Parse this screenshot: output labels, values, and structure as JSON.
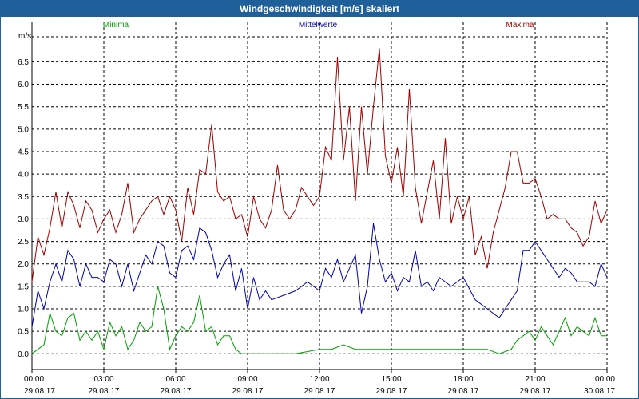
{
  "window": {
    "title": "Windgeschwindigkeit [m/s] skaliert"
  },
  "chart_data": {
    "type": "line",
    "title": "Windgeschwindigkeit [m/s] skaliert",
    "ylabel": "m/s",
    "xlabel": "",
    "ylim": [
      -0.35,
      7.2
    ],
    "xlim": [
      0,
      24
    ],
    "grid": true,
    "legend": "top",
    "yticks": [
      "0.0",
      "0.5",
      "1.0",
      "1.5",
      "2.0",
      "2.5",
      "3.0",
      "3.5",
      "4.0",
      "4.5",
      "5.0",
      "5.5",
      "6.0",
      "6.5"
    ],
    "xticks": [
      {
        "time": "00:00",
        "date": "29.08.17"
      },
      {
        "time": "03:00",
        "date": "29.08.17"
      },
      {
        "time": "06:00",
        "date": "29.08.17"
      },
      {
        "time": "09:00",
        "date": "29.08.17"
      },
      {
        "time": "12:00",
        "date": "29.08.17"
      },
      {
        "time": "15:00",
        "date": "29.08.17"
      },
      {
        "time": "18:00",
        "date": "29.08.17"
      },
      {
        "time": "21:00",
        "date": "29.08.17"
      },
      {
        "time": "00:00",
        "date": "30.08.17"
      }
    ],
    "x_unit": "hours since 29.08.17 00:00",
    "series": [
      {
        "name": "Minima",
        "color": "#00a000",
        "x": [
          0.0,
          0.25,
          0.5,
          0.75,
          1.0,
          1.25,
          1.5,
          1.75,
          2.0,
          2.25,
          2.5,
          2.75,
          3.0,
          3.25,
          3.5,
          3.75,
          4.0,
          4.25,
          4.5,
          4.75,
          5.0,
          5.25,
          5.5,
          5.75,
          6.0,
          6.25,
          6.5,
          6.75,
          7.0,
          7.25,
          7.5,
          7.75,
          8.0,
          8.25,
          8.5,
          8.75,
          9.0,
          9.5,
          10.0,
          11.0,
          12.0,
          12.5,
          13.0,
          13.5,
          14.0,
          14.5,
          15.0,
          15.5,
          16.0,
          16.5,
          17.0,
          18.0,
          19.0,
          19.5,
          20.0,
          20.25,
          20.5,
          20.75,
          21.0,
          21.25,
          21.5,
          21.75,
          22.0,
          22.25,
          22.5,
          22.75,
          23.0,
          23.25,
          23.5,
          23.75,
          24.0
        ],
        "values": [
          0.0,
          0.1,
          0.2,
          0.9,
          0.5,
          0.4,
          0.8,
          0.9,
          0.3,
          0.5,
          0.3,
          0.5,
          0.1,
          0.7,
          0.4,
          0.6,
          0.1,
          0.3,
          0.7,
          0.5,
          0.6,
          1.5,
          1.0,
          0.1,
          0.4,
          0.6,
          0.5,
          0.7,
          1.3,
          0.5,
          0.6,
          0.2,
          0.4,
          0.4,
          0.1,
          0.0,
          0.0,
          0.0,
          0.0,
          0.0,
          0.1,
          0.1,
          0.2,
          0.1,
          0.1,
          0.1,
          0.1,
          0.1,
          0.1,
          0.1,
          0.1,
          0.1,
          0.1,
          0.0,
          0.1,
          0.3,
          0.4,
          0.5,
          0.3,
          0.6,
          0.4,
          0.2,
          0.5,
          0.8,
          0.4,
          0.6,
          0.5,
          0.4,
          0.8,
          0.4,
          0.4
        ]
      },
      {
        "name": "Mittelwerte",
        "color": "#0000b0",
        "x": [
          0.0,
          0.25,
          0.5,
          0.75,
          1.0,
          1.25,
          1.5,
          1.75,
          2.0,
          2.25,
          2.5,
          2.75,
          3.0,
          3.25,
          3.5,
          3.75,
          4.0,
          4.25,
          4.5,
          4.75,
          5.0,
          5.25,
          5.5,
          5.75,
          6.0,
          6.25,
          6.5,
          6.75,
          7.0,
          7.25,
          7.5,
          7.75,
          8.0,
          8.25,
          8.5,
          8.75,
          9.0,
          9.25,
          9.5,
          9.75,
          10.0,
          10.5,
          11.0,
          11.5,
          12.0,
          12.25,
          12.5,
          12.75,
          13.0,
          13.25,
          13.5,
          13.75,
          14.0,
          14.25,
          14.5,
          14.75,
          15.0,
          15.25,
          15.5,
          15.75,
          16.0,
          16.25,
          16.5,
          16.75,
          17.0,
          17.5,
          18.0,
          18.5,
          19.0,
          19.5,
          20.0,
          20.25,
          20.5,
          20.75,
          21.0,
          21.25,
          21.5,
          21.75,
          22.0,
          22.25,
          22.5,
          22.75,
          23.0,
          23.25,
          23.5,
          23.75,
          24.0
        ],
        "values": [
          0.6,
          1.4,
          1.0,
          1.6,
          2.0,
          1.6,
          2.3,
          2.1,
          1.5,
          2.0,
          1.7,
          1.7,
          1.6,
          2.1,
          2.0,
          1.5,
          2.0,
          1.4,
          1.8,
          2.2,
          2.0,
          2.5,
          2.4,
          1.8,
          1.7,
          2.3,
          2.4,
          2.1,
          2.8,
          2.7,
          2.3,
          1.7,
          2.0,
          2.2,
          1.4,
          1.9,
          1.0,
          1.7,
          1.2,
          1.4,
          1.2,
          1.3,
          1.4,
          1.6,
          1.4,
          1.9,
          1.7,
          2.1,
          1.6,
          1.9,
          2.2,
          0.9,
          1.5,
          2.9,
          2.1,
          1.6,
          1.8,
          1.4,
          1.7,
          1.6,
          2.3,
          1.5,
          1.6,
          1.4,
          1.7,
          1.5,
          1.7,
          1.2,
          1.0,
          0.8,
          1.2,
          1.4,
          2.3,
          2.3,
          2.5,
          2.3,
          2.1,
          1.9,
          1.7,
          1.9,
          1.8,
          1.6,
          1.6,
          1.6,
          1.5,
          2.0,
          1.7
        ]
      },
      {
        "name": "Maxima",
        "color": "#a00000",
        "x": [
          0.0,
          0.25,
          0.5,
          0.75,
          1.0,
          1.25,
          1.5,
          1.75,
          2.0,
          2.25,
          2.5,
          2.75,
          3.0,
          3.25,
          3.5,
          3.75,
          4.0,
          4.25,
          4.5,
          4.75,
          5.0,
          5.25,
          5.5,
          5.75,
          6.0,
          6.25,
          6.5,
          6.75,
          7.0,
          7.25,
          7.5,
          7.75,
          8.0,
          8.25,
          8.5,
          8.75,
          9.0,
          9.25,
          9.5,
          9.75,
          10.0,
          10.25,
          10.5,
          10.75,
          11.0,
          11.25,
          11.5,
          11.75,
          12.0,
          12.25,
          12.5,
          12.75,
          13.0,
          13.25,
          13.5,
          13.75,
          14.0,
          14.25,
          14.5,
          14.75,
          15.0,
          15.25,
          15.5,
          15.75,
          16.0,
          16.25,
          16.5,
          16.75,
          17.0,
          17.25,
          17.5,
          17.75,
          18.0,
          18.25,
          18.5,
          18.75,
          19.0,
          19.25,
          19.5,
          19.75,
          20.0,
          20.25,
          20.5,
          20.75,
          21.0,
          21.25,
          21.5,
          21.75,
          22.0,
          22.25,
          22.5,
          22.75,
          23.0,
          23.25,
          23.5,
          23.75,
          24.0
        ],
        "values": [
          1.6,
          2.6,
          2.2,
          2.8,
          3.6,
          2.8,
          3.6,
          3.3,
          2.8,
          3.4,
          3.2,
          2.7,
          3.0,
          3.2,
          2.7,
          3.1,
          3.8,
          2.7,
          3.0,
          3.2,
          3.4,
          3.5,
          3.1,
          3.5,
          3.2,
          2.5,
          3.7,
          3.1,
          4.1,
          4.0,
          5.1,
          3.6,
          3.4,
          3.5,
          3.0,
          3.1,
          2.6,
          3.5,
          3.0,
          2.8,
          3.2,
          4.2,
          3.2,
          3.0,
          3.2,
          3.7,
          3.5,
          3.3,
          3.5,
          4.6,
          4.3,
          6.6,
          4.3,
          5.5,
          3.4,
          5.5,
          4.0,
          5.5,
          6.8,
          4.4,
          3.8,
          4.6,
          3.5,
          5.9,
          3.7,
          2.9,
          3.6,
          4.3,
          3.0,
          4.8,
          2.9,
          3.5,
          3.0,
          3.5,
          2.2,
          2.6,
          1.9,
          2.7,
          3.2,
          3.7,
          4.5,
          4.5,
          3.8,
          3.8,
          3.9,
          3.5,
          3.0,
          3.1,
          3.0,
          3.0,
          2.8,
          2.7,
          2.4,
          2.6,
          3.4,
          2.9,
          3.2
        ]
      }
    ]
  }
}
